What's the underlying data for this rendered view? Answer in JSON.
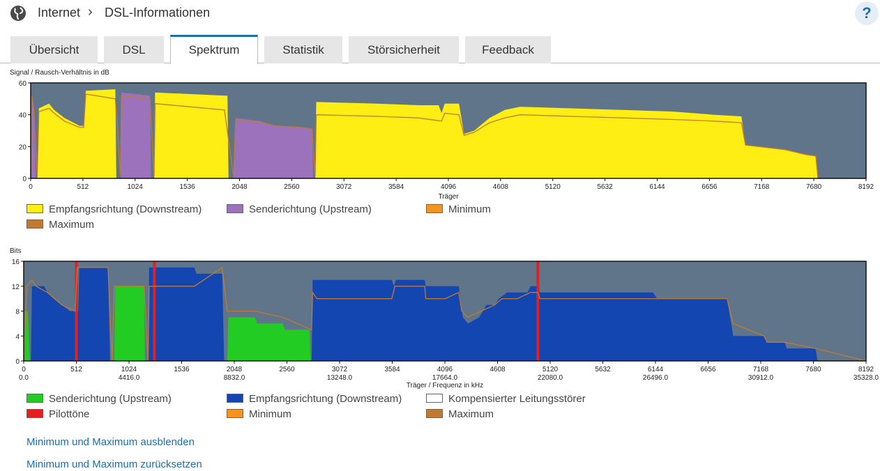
{
  "breadcrumb": {
    "items": [
      "Internet",
      "DSL-Informationen"
    ],
    "separator": "›"
  },
  "help_label": "?",
  "tabs": [
    {
      "label": "Übersicht",
      "active": false
    },
    {
      "label": "DSL",
      "active": false
    },
    {
      "label": "Spektrum",
      "active": true
    },
    {
      "label": "Statistik",
      "active": false
    },
    {
      "label": "Störsicherheit",
      "active": false
    },
    {
      "label": "Feedback",
      "active": false
    }
  ],
  "colors": {
    "plot_bg": "#607589",
    "snr_downstream": "#ffee14",
    "snr_upstream": "#9b72bb",
    "bits_upstream": "#22cc22",
    "bits_downstream": "#1446b2",
    "pilot": "#e61e1e",
    "minimum": "#f7941d",
    "maximum": "#c17a32"
  },
  "chart_data": [
    {
      "type": "area",
      "ylabel": "Signal / Rausch-Verhältnis in dB",
      "xlabel": "Träger",
      "xlim": [
        0,
        8192
      ],
      "ylim": [
        0,
        60
      ],
      "yticks": [
        0,
        20,
        40,
        60
      ],
      "xticks": [
        0,
        512,
        1024,
        1536,
        2048,
        2560,
        3072,
        3584,
        4096,
        4608,
        5120,
        5632,
        6144,
        6656,
        7168,
        7680,
        8192
      ],
      "series": [
        {
          "name": "Empfangsrichtung (Downstream)",
          "color": "#ffee14",
          "segments": [
            [
              [
                64,
                0
              ],
              [
                80,
                44
              ],
              [
                180,
                47
              ],
              [
                230,
                43
              ],
              [
                330,
                38
              ],
              [
                480,
                33
              ],
              [
                520,
                33
              ],
              [
                540,
                55
              ],
              [
                830,
                56
              ],
              [
                840,
                0
              ]
            ],
            [
              [
                1210,
                0
              ],
              [
                1220,
                54
              ],
              [
                1900,
                52
              ],
              [
                1930,
                52
              ],
              [
                1940,
                0
              ]
            ],
            [
              [
                2790,
                0
              ],
              [
                2800,
                48
              ],
              [
                3400,
                47
              ],
              [
                3800,
                46
              ],
              [
                3900,
                46
              ],
              [
                4000,
                46
              ],
              [
                4030,
                41
              ],
              [
                4060,
                47
              ],
              [
                4200,
                47
              ],
              [
                4250,
                28
              ],
              [
                4350,
                30
              ],
              [
                4500,
                38
              ],
              [
                4650,
                43
              ],
              [
                4800,
                45
              ],
              [
                5300,
                44
              ],
              [
                5800,
                43
              ],
              [
                6300,
                42
              ],
              [
                6700,
                40
              ],
              [
                6970,
                39
              ],
              [
                7010,
                21
              ],
              [
                7400,
                18
              ],
              [
                7600,
                15
              ],
              [
                7700,
                14
              ],
              [
                7720,
                0
              ]
            ]
          ]
        },
        {
          "name": "Senderichtung (Upstream)",
          "color": "#9b72bb",
          "segments": [
            [
              [
                0,
                0
              ],
              [
                10,
                52
              ],
              [
                30,
                45
              ],
              [
                50,
                0
              ]
            ],
            [
              [
                880,
                0
              ],
              [
                890,
                54
              ],
              [
                1170,
                52
              ],
              [
                1180,
                0
              ]
            ],
            [
              [
                1990,
                0
              ],
              [
                2010,
                38
              ],
              [
                2250,
                36
              ],
              [
                2400,
                33
              ],
              [
                2650,
                32
              ],
              [
                2760,
                31
              ],
              [
                2770,
                0
              ]
            ]
          ]
        },
        {
          "name": "Minimum",
          "color": "#f7941d"
        },
        {
          "name": "Maximum",
          "color": "#c17a32",
          "line": [
            [
              0,
              0
            ],
            [
              10,
              52
            ],
            [
              30,
              44
            ],
            [
              64,
              1
            ],
            [
              80,
              42
            ],
            [
              180,
              44
            ],
            [
              230,
              41
            ],
            [
              330,
              36
            ],
            [
              480,
              32
            ],
            [
              520,
              32
            ],
            [
              540,
              53
            ],
            [
              830,
              50
            ],
            [
              880,
              2
            ],
            [
              890,
              52
            ],
            [
              1170,
              50
            ],
            [
              1210,
              1
            ],
            [
              1220,
              47
            ],
            [
              1900,
              43
            ],
            [
              1990,
              1
            ],
            [
              2010,
              37
            ],
            [
              2250,
              35
            ],
            [
              2400,
              33
            ],
            [
              2650,
              32
            ],
            [
              2760,
              31
            ],
            [
              2790,
              1
            ],
            [
              2800,
              40
            ],
            [
              3400,
              39
            ],
            [
              3800,
              38
            ],
            [
              4030,
              36
            ],
            [
              4060,
              41
            ],
            [
              4200,
              40
            ],
            [
              4250,
              27
            ],
            [
              4350,
              29
            ],
            [
              4500,
              35
            ],
            [
              4650,
              38
            ],
            [
              4800,
              40
            ],
            [
              5300,
              39
            ],
            [
              5800,
              38
            ],
            [
              6300,
              37
            ],
            [
              6700,
              36
            ],
            [
              6970,
              35
            ],
            [
              7010,
              21
            ],
            [
              7400,
              18
            ],
            [
              7600,
              15
            ],
            [
              7700,
              14
            ],
            [
              7720,
              0
            ],
            [
              8192,
              0
            ]
          ]
        }
      ]
    },
    {
      "type": "area",
      "ylabel": "Bits",
      "xlabel": "Träger / Frequenz in kHz",
      "xlim": [
        0,
        8192
      ],
      "ylim": [
        0,
        16
      ],
      "yticks": [
        0,
        4,
        8,
        12,
        16
      ],
      "xticks": [
        0,
        512,
        1024,
        1536,
        2048,
        2560,
        3072,
        3584,
        4096,
        4608,
        5120,
        5632,
        6144,
        6656,
        7168,
        7680,
        8192
      ],
      "xticks_freq": [
        "0.0",
        "4416.0",
        "8832.0",
        "13248.0",
        "17664.0",
        "22080.0",
        "26496.0",
        "30912.0",
        "35328.0"
      ],
      "series": [
        {
          "name": "Senderichtung (Upstream)",
          "color": "#22cc22",
          "segments": [
            [
              [
                0,
                0
              ],
              [
                10,
                8
              ],
              [
                40,
                8
              ],
              [
                60,
                0
              ]
            ],
            [
              [
                880,
                0
              ],
              [
                890,
                12
              ],
              [
                1170,
                12
              ],
              [
                1180,
                0
              ]
            ],
            [
              [
                1980,
                0
              ],
              [
                1990,
                7
              ],
              [
                2250,
                7
              ],
              [
                2270,
                6
              ],
              [
                2520,
                6
              ],
              [
                2540,
                5
              ],
              [
                2780,
                5
              ],
              [
                2790,
                0
              ]
            ]
          ]
        },
        {
          "name": "Empfangsrichtung (Downstream)",
          "color": "#1446b2",
          "segments": [
            [
              [
                70,
                0
              ],
              [
                80,
                12
              ],
              [
                200,
                12
              ],
              [
                230,
                11
              ],
              [
                290,
                10
              ],
              [
                370,
                9
              ],
              [
                450,
                8
              ],
              [
                500,
                8
              ],
              [
                530,
                8
              ],
              [
                540,
                15
              ],
              [
                820,
                15
              ],
              [
                840,
                0
              ]
            ],
            [
              [
                1210,
                0
              ],
              [
                1220,
                15
              ],
              [
                1660,
                15
              ],
              [
                1680,
                14
              ],
              [
                1930,
                14
              ],
              [
                1950,
                0
              ]
            ],
            [
              [
                2800,
                0
              ],
              [
                2810,
                13
              ],
              [
                3580,
                13
              ],
              [
                3600,
                12
              ],
              [
                3620,
                13
              ],
              [
                3900,
                13
              ],
              [
                3910,
                12
              ],
              [
                4100,
                12
              ],
              [
                4230,
                12
              ],
              [
                4270,
                7
              ],
              [
                4320,
                6
              ],
              [
                4430,
                7
              ],
              [
                4500,
                9
              ],
              [
                4580,
                9
              ],
              [
                4620,
                10
              ],
              [
                4700,
                11
              ],
              [
                4900,
                11
              ],
              [
                4930,
                12
              ],
              [
                5000,
                12
              ],
              [
                5020,
                11
              ],
              [
                6120,
                11
              ],
              [
                6160,
                10
              ],
              [
                6840,
                10
              ],
              [
                6900,
                4
              ],
              [
                7200,
                4
              ],
              [
                7230,
                3
              ],
              [
                7400,
                3
              ],
              [
                7420,
                2
              ],
              [
                7700,
                2
              ],
              [
                7720,
                0
              ]
            ]
          ]
        },
        {
          "name": "Kompensierter Leitungsstörer",
          "color": "#ffffff"
        },
        {
          "name": "Pilottöne",
          "color": "#e61e1e",
          "carriers": [
            512,
            1270,
            5000
          ]
        },
        {
          "name": "Minimum",
          "color": "#f7941d"
        },
        {
          "name": "Maximum",
          "color": "#c17a32",
          "line": [
            [
              0,
              0
            ],
            [
              30,
              12
            ],
            [
              80,
              13
            ],
            [
              120,
              12
            ],
            [
              230,
              11
            ],
            [
              370,
              9
            ],
            [
              500,
              8
            ],
            [
              520,
              15
            ],
            [
              820,
              15
            ],
            [
              860,
              0
            ],
            [
              880,
              12
            ],
            [
              1170,
              12
            ],
            [
              1210,
              0
            ],
            [
              1220,
              12
            ],
            [
              1660,
              12
            ],
            [
              1930,
              15
            ],
            [
              1980,
              8
            ],
            [
              2250,
              8
            ],
            [
              2520,
              7
            ],
            [
              2800,
              5
            ],
            [
              2810,
              11
            ],
            [
              2850,
              10
            ],
            [
              3580,
              10
            ],
            [
              3610,
              12
            ],
            [
              3900,
              12
            ],
            [
              3910,
              10
            ],
            [
              4100,
              10
            ],
            [
              4230,
              11
            ],
            [
              4260,
              8
            ],
            [
              4320,
              7
            ],
            [
              4450,
              8
            ],
            [
              4580,
              9
            ],
            [
              4650,
              10
            ],
            [
              4800,
              10
            ],
            [
              4930,
              11
            ],
            [
              5000,
              11
            ],
            [
              5020,
              10
            ],
            [
              6160,
              10
            ],
            [
              6840,
              10
            ],
            [
              6900,
              6
            ],
            [
              7200,
              4
            ],
            [
              7230,
              3
            ],
            [
              7400,
              3
            ],
            [
              7700,
              2
            ],
            [
              8192,
              0
            ]
          ]
        }
      ]
    }
  ],
  "legend1": [
    "Empfangsrichtung (Downstream)",
    "Senderichtung (Upstream)",
    "Minimum",
    "Maximum"
  ],
  "legend2": [
    "Senderichtung (Upstream)",
    "Empfangsrichtung (Downstream)",
    "Kompensierter Leitungsstörer",
    "Pilottöne",
    "Minimum",
    "Maximum"
  ],
  "links": {
    "hide_minmax": "Minimum und Maximum ausblenden",
    "reset_minmax": "Minimum und Maximum zurücksetzen"
  }
}
